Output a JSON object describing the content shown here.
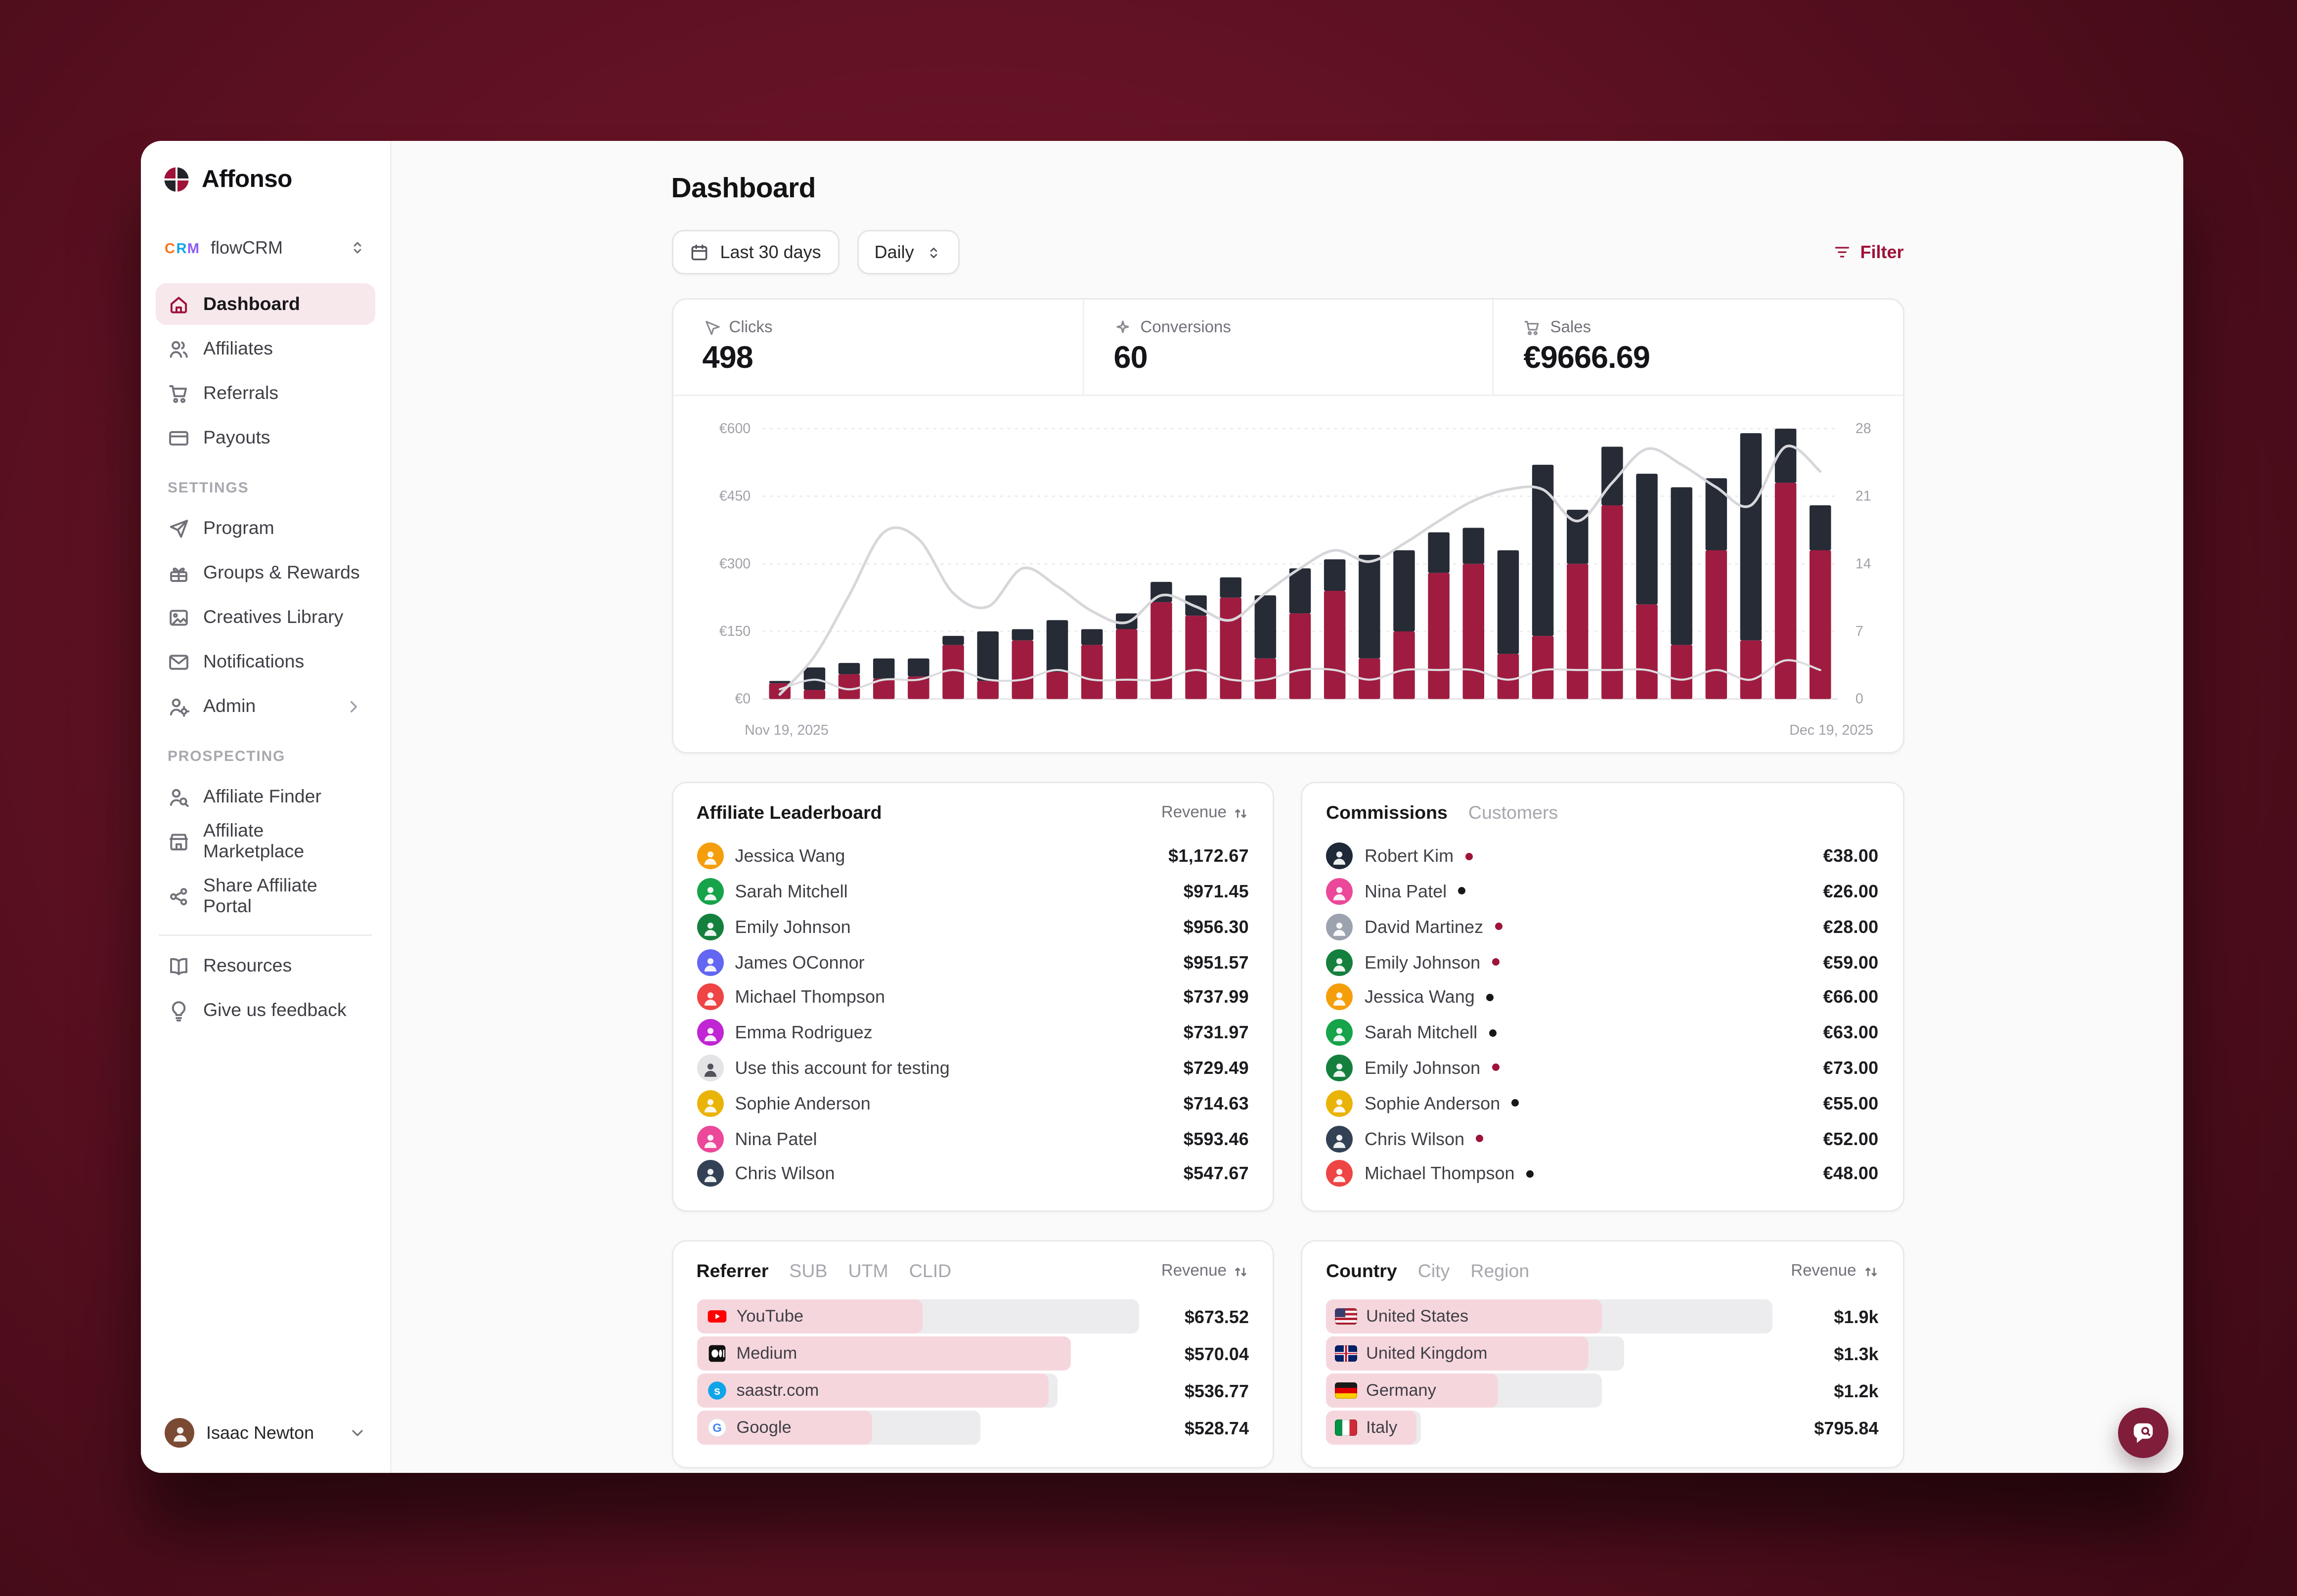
{
  "brand": {
    "name": "Affonso"
  },
  "workspace": {
    "name": "flowCRM"
  },
  "sidebar": {
    "nav": [
      {
        "label": "Dashboard",
        "icon": "home",
        "active": true
      },
      {
        "label": "Affiliates",
        "icon": "users"
      },
      {
        "label": "Referrals",
        "icon": "cart"
      },
      {
        "label": "Payouts",
        "icon": "card"
      }
    ],
    "settings_label": "SETTINGS",
    "settings": [
      {
        "label": "Program",
        "icon": "send"
      },
      {
        "label": "Groups & Rewards",
        "icon": "gift"
      },
      {
        "label": "Creatives Library",
        "icon": "image"
      },
      {
        "label": "Notifications",
        "icon": "mail"
      },
      {
        "label": "Admin",
        "icon": "usercog",
        "chevron": true
      }
    ],
    "prospecting_label": "PROSPECTING",
    "prospecting": [
      {
        "label": "Affiliate Finder",
        "icon": "usersearch"
      },
      {
        "label": "Affiliate Marketplace",
        "icon": "store"
      }
    ],
    "share_items": [
      {
        "label": "Share Affiliate Portal",
        "icon": "share"
      }
    ],
    "footer": [
      {
        "label": "Resources",
        "icon": "book"
      },
      {
        "label": "Give us feedback",
        "icon": "bulb"
      }
    ],
    "user": {
      "name": "Isaac Newton"
    }
  },
  "header": {
    "title": "Dashboard"
  },
  "controls": {
    "date_range": "Last 30 days",
    "granularity": "Daily",
    "filter_label": "Filter"
  },
  "stats": [
    {
      "label": "Clicks",
      "value": "498",
      "icon": "cursor"
    },
    {
      "label": "Conversions",
      "value": "60",
      "icon": "sparkle"
    },
    {
      "label": "Sales",
      "value": "€9666.69",
      "icon": "cart"
    }
  ],
  "chart_data": {
    "type": "bar",
    "stacked": true,
    "x_start_label": "Nov 19, 2025",
    "x_end_label": "Dec 19, 2025",
    "left_axis": {
      "ticks": [
        "€0",
        "€150",
        "€300",
        "€450",
        "€600"
      ],
      "max": 600
    },
    "right_axis": {
      "ticks": [
        "0",
        "7",
        "14",
        "21",
        "28"
      ],
      "max": 28
    },
    "series": [
      {
        "name": "revenue-red",
        "color": "#9f1c40",
        "axis": "left",
        "values": [
          35,
          20,
          55,
          45,
          50,
          120,
          40,
          130,
          60,
          120,
          155,
          215,
          185,
          225,
          90,
          190,
          240,
          90,
          150,
          280,
          300,
          100,
          140,
          300,
          430,
          210,
          120,
          330,
          130,
          480,
          330
        ]
      },
      {
        "name": "revenue-dark",
        "color": "#262b36",
        "axis": "left",
        "values": [
          5,
          50,
          25,
          45,
          40,
          20,
          110,
          25,
          115,
          35,
          35,
          45,
          45,
          45,
          140,
          100,
          70,
          230,
          180,
          90,
          80,
          230,
          380,
          120,
          130,
          290,
          350,
          160,
          460,
          120,
          100
        ]
      },
      {
        "name": "trend-line",
        "type": "line",
        "color": "#d7d7db",
        "axis": "left",
        "values": [
          10,
          95,
          230,
          370,
          355,
          235,
          205,
          290,
          250,
          195,
          170,
          230,
          205,
          175,
          235,
          290,
          330,
          305,
          345,
          395,
          440,
          465,
          465,
          395,
          480,
          555,
          520,
          470,
          430,
          560,
          505
        ]
      },
      {
        "name": "conversions-line",
        "type": "line",
        "color": "#dcdce0",
        "axis": "right",
        "values": [
          1,
          2,
          1,
          2,
          2,
          3,
          2,
          2,
          3,
          2,
          2,
          2,
          3,
          2,
          2,
          3,
          3,
          2,
          3,
          3,
          3,
          2,
          3,
          3,
          3,
          3,
          2,
          3,
          2,
          4,
          3
        ]
      }
    ]
  },
  "leaderboard": {
    "title": "Affiliate Leaderboard",
    "sort_label": "Revenue",
    "rows": [
      {
        "name": "Jessica Wang",
        "amount": "$1,172.67",
        "avatar_color": "#f59e0b"
      },
      {
        "name": "Sarah Mitchell",
        "amount": "$971.45",
        "avatar_color": "#16a34a"
      },
      {
        "name": "Emily Johnson",
        "amount": "$956.30",
        "avatar_color": "#15803d"
      },
      {
        "name": "James OConnor",
        "amount": "$951.57",
        "avatar_color": "#6366f1"
      },
      {
        "name": "Michael Thompson",
        "amount": "$737.99",
        "avatar_color": "#ef4444"
      },
      {
        "name": "Emma Rodriguez",
        "amount": "$731.97",
        "avatar_color": "#c026d3"
      },
      {
        "name": "Use this account for testing",
        "amount": "$729.49",
        "avatar_color": "#e4e4e7",
        "avatar_fg": "#52525b"
      },
      {
        "name": "Sophie Anderson",
        "amount": "$714.63",
        "avatar_color": "#eab308"
      },
      {
        "name": "Nina Patel",
        "amount": "$593.46",
        "avatar_color": "#ec4899"
      },
      {
        "name": "Chris Wilson",
        "amount": "$547.67",
        "avatar_color": "#334155"
      }
    ]
  },
  "commissions": {
    "tabs": [
      {
        "label": "Commissions",
        "active": true
      },
      {
        "label": "Customers",
        "active": false
      }
    ],
    "rows": [
      {
        "name": "Robert Kim",
        "amount": "€38.00",
        "avatar_color": "#1f2937",
        "dot_color": "#9f1239"
      },
      {
        "name": "Nina Patel",
        "amount": "€26.00",
        "avatar_color": "#ec4899",
        "dot_color": "#18181b"
      },
      {
        "name": "David Martinez",
        "amount": "€28.00",
        "avatar_color": "#9ca3af",
        "dot_color": "#9f1239"
      },
      {
        "name": "Emily Johnson",
        "amount": "€59.00",
        "avatar_color": "#15803d",
        "dot_color": "#9f1239"
      },
      {
        "name": "Jessica Wang",
        "amount": "€66.00",
        "avatar_color": "#f59e0b",
        "dot_color": "#18181b"
      },
      {
        "name": "Sarah Mitchell",
        "amount": "€63.00",
        "avatar_color": "#16a34a",
        "dot_color": "#18181b"
      },
      {
        "name": "Emily Johnson",
        "amount": "€73.00",
        "avatar_color": "#15803d",
        "dot_color": "#9f1239"
      },
      {
        "name": "Sophie Anderson",
        "amount": "€55.00",
        "avatar_color": "#eab308",
        "dot_color": "#18181b"
      },
      {
        "name": "Chris Wilson",
        "amount": "€52.00",
        "avatar_color": "#334155",
        "dot_color": "#9f1239"
      },
      {
        "name": "Michael Thompson",
        "amount": "€48.00",
        "avatar_color": "#ef4444",
        "dot_color": "#18181b"
      }
    ]
  },
  "referrers": {
    "tabs": [
      {
        "label": "Referrer",
        "active": true
      },
      {
        "label": "SUB",
        "active": false
      },
      {
        "label": "UTM",
        "active": false
      },
      {
        "label": "CLID",
        "active": false
      }
    ],
    "sort_label": "Revenue",
    "rows": [
      {
        "name": "YouTube",
        "amount": "$673.52",
        "icon": "youtube",
        "fill": "50%",
        "track": "98%"
      },
      {
        "name": "Medium",
        "amount": "$570.04",
        "icon": "medium",
        "fill": "83%",
        "track": "83%"
      },
      {
        "name": "saastr.com",
        "amount": "$536.77",
        "icon": "saastr",
        "fill": "78%",
        "track": "80%"
      },
      {
        "name": "Google",
        "amount": "$528.74",
        "icon": "google",
        "fill": "39%",
        "track": "63%"
      }
    ]
  },
  "countries": {
    "tabs": [
      {
        "label": "Country",
        "active": true
      },
      {
        "label": "City",
        "active": false
      },
      {
        "label": "Region",
        "active": false
      }
    ],
    "sort_label": "Revenue",
    "rows": [
      {
        "name": "United States",
        "amount": "$1.9k",
        "flag": "us",
        "fill": "61%",
        "track": "99%"
      },
      {
        "name": "United Kingdom",
        "amount": "$1.3k",
        "flag": "gb",
        "fill": "58%",
        "track": "66%"
      },
      {
        "name": "Germany",
        "amount": "$1.2k",
        "flag": "de",
        "fill": "38%",
        "track": "61%"
      },
      {
        "name": "Italy",
        "amount": "$795.84",
        "flag": "it",
        "fill": "20%",
        "track": "21%"
      }
    ]
  }
}
